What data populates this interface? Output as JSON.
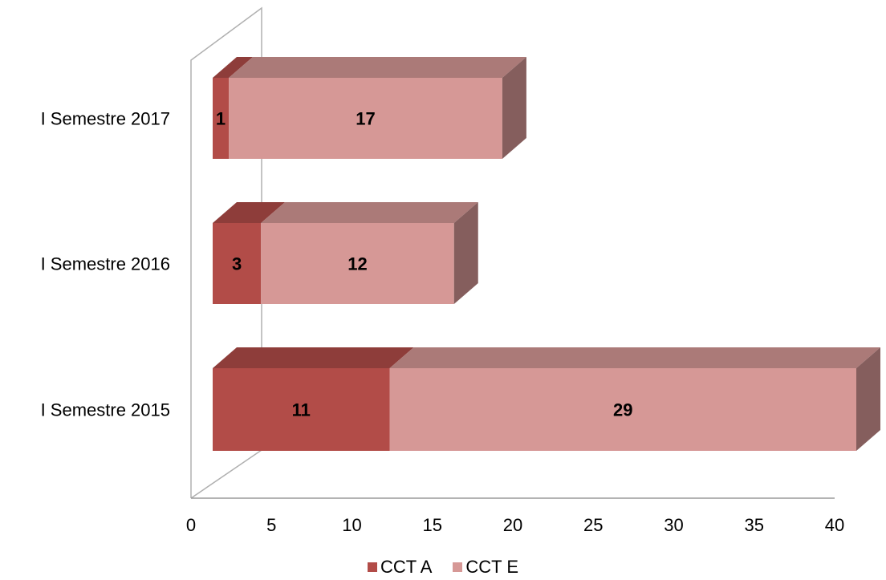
{
  "chart_data": {
    "type": "bar",
    "orientation": "horizontal",
    "stacked": true,
    "three_d": true,
    "categories": [
      "I Semestre 2017",
      "I Semestre 2016",
      "I Semestre 2015"
    ],
    "series": [
      {
        "name": "CCT A",
        "values": [
          1,
          3,
          11
        ],
        "color": "#b24c48"
      },
      {
        "name": "CCT E",
        "values": [
          17,
          12,
          29
        ],
        "color": "#d69896"
      }
    ],
    "xlim": [
      0,
      40
    ],
    "xticks": [
      "0",
      "5",
      "10",
      "15",
      "20",
      "25",
      "30",
      "35",
      "40"
    ],
    "grid": false,
    "legend_position": "bottom"
  }
}
